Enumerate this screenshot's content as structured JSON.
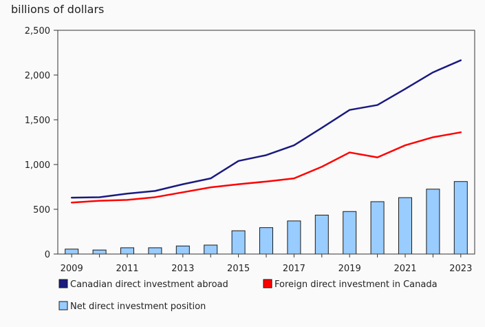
{
  "chart_data": {
    "type": "bar+line",
    "ylabel": "billions of dollars",
    "ylim": [
      0,
      2500
    ],
    "yticks": [
      0,
      500,
      1000,
      1500,
      2000,
      2500
    ],
    "ytick_labels": [
      "0",
      "500",
      "1,000",
      "1,500",
      "2,000",
      "2,500"
    ],
    "categories": [
      2009,
      2010,
      2011,
      2012,
      2013,
      2014,
      2015,
      2016,
      2017,
      2018,
      2019,
      2020,
      2021,
      2022,
      2023
    ],
    "xtick_labels": [
      "2009",
      "2011",
      "2013",
      "2015",
      "2017",
      "2019",
      "2021",
      "2023"
    ],
    "series": [
      {
        "name": "Canadian direct investment abroad",
        "type": "line",
        "color": "#1a1a80",
        "values": [
          630,
          635,
          675,
          705,
          780,
          845,
          1040,
          1105,
          1215,
          1410,
          1610,
          1665,
          1845,
          2030,
          2165
        ]
      },
      {
        "name": "Foreign direct investment in Canada",
        "type": "line",
        "color": "#ff0000",
        "values": [
          575,
          595,
          605,
          635,
          690,
          745,
          780,
          810,
          845,
          975,
          1135,
          1080,
          1215,
          1305,
          1360
        ]
      },
      {
        "name": "Net direct investment position",
        "type": "bar",
        "color": "#99ccff",
        "values": [
          55,
          45,
          70,
          70,
          90,
          100,
          260,
          295,
          370,
          435,
          475,
          585,
          630,
          725,
          810
        ]
      }
    ],
    "legend": {
      "placement": "bottom",
      "entries": [
        "Canadian direct investment abroad",
        "Foreign direct investment in Canada",
        "Net direct investment position"
      ]
    },
    "grid": false
  }
}
